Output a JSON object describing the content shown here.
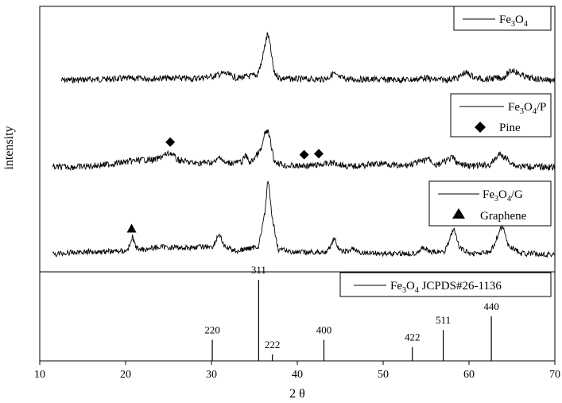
{
  "chart_data": {
    "type": "line",
    "xlabel": "2 θ",
    "ylabel": "intensity",
    "xlim": [
      10,
      70
    ],
    "xticks": [
      "10",
      "20",
      "30",
      "40",
      "50",
      "60",
      "70"
    ],
    "grid": false,
    "series": [
      {
        "name": "Fe3O4",
        "legend": {
          "main": "Fe",
          "sub": "3",
          "mid": "O",
          "sub2": "4",
          "tail": ""
        },
        "x": [
          12.5,
          20,
          25,
          28,
          30.2,
          31.5,
          33,
          35.3,
          35.8,
          36.3,
          36.55,
          36.8,
          37.3,
          38,
          40,
          43,
          43.8,
          44.2,
          44.7,
          46,
          50,
          53.5,
          54.8,
          55.8,
          57.5,
          58.8,
          59.5,
          60,
          60.8,
          62,
          64,
          64.6,
          65.2,
          65.8,
          67,
          70
        ],
        "y": [
          0.08,
          0.11,
          0.12,
          0.11,
          0.16,
          0.22,
          0.12,
          0.18,
          0.4,
          0.82,
          1.0,
          0.8,
          0.22,
          0.12,
          0.1,
          0.1,
          0.15,
          0.22,
          0.14,
          0.1,
          0.09,
          0.09,
          0.13,
          0.09,
          0.09,
          0.13,
          0.23,
          0.2,
          0.12,
          0.1,
          0.13,
          0.22,
          0.29,
          0.2,
          0.12,
          0.08
        ]
      },
      {
        "name": "Fe3O4/P",
        "legend": {
          "main": "Fe",
          "sub": "3",
          "mid": "O",
          "sub2": "4",
          "tail": "/P"
        },
        "x": [
          11.5,
          15,
          18,
          20,
          22,
          23.5,
          24.8,
          25.3,
          26,
          28,
          30.5,
          31,
          31.5,
          33.5,
          34,
          34.5,
          35.8,
          36.2,
          36.5,
          36.8,
          37.3,
          38.5,
          40,
          42,
          44.2,
          46,
          50.2,
          52,
          54.8,
          55.2,
          56.2,
          58.1,
          58.8,
          60.5,
          62.5,
          63.5,
          64.2,
          65.5,
          70
        ],
        "y": [
          0.05,
          0.06,
          0.1,
          0.14,
          0.18,
          0.18,
          0.28,
          0.3,
          0.18,
          0.12,
          0.14,
          0.25,
          0.12,
          0.14,
          0.26,
          0.12,
          0.36,
          0.62,
          0.7,
          0.55,
          0.16,
          0.08,
          0.07,
          0.08,
          0.13,
          0.06,
          0.12,
          0.06,
          0.16,
          0.22,
          0.08,
          0.22,
          0.1,
          0.07,
          0.09,
          0.28,
          0.22,
          0.07,
          0.05
        ]
      },
      {
        "name": "Fe3O4/G",
        "legend": {
          "main": "Fe",
          "sub": "3",
          "mid": "O",
          "sub2": "4",
          "tail": "/G"
        },
        "x": [
          11.5,
          15,
          20,
          20.5,
          20.8,
          21.2,
          22,
          24,
          27,
          30.2,
          30.9,
          31.5,
          33,
          35.5,
          36.2,
          36.6,
          37,
          37.8,
          40,
          43.5,
          44.3,
          44.9,
          46,
          46.5,
          47,
          50,
          53.5,
          54.8,
          55.5,
          57.2,
          58.2,
          58.9,
          60,
          62.5,
          63.4,
          63.9,
          64.5,
          66,
          70
        ],
        "y": [
          0.06,
          0.09,
          0.1,
          0.16,
          0.28,
          0.14,
          0.12,
          0.15,
          0.14,
          0.16,
          0.32,
          0.15,
          0.1,
          0.16,
          0.55,
          1.0,
          0.55,
          0.12,
          0.08,
          0.09,
          0.26,
          0.1,
          0.09,
          0.14,
          0.08,
          0.07,
          0.07,
          0.14,
          0.08,
          0.1,
          0.38,
          0.14,
          0.07,
          0.08,
          0.3,
          0.42,
          0.18,
          0.07,
          0.06
        ]
      }
    ],
    "reference": {
      "legend": {
        "main": "Fe",
        "sub": "3",
        "mid": "O",
        "sub2": "4",
        "tail": " JCPDS#26-1136"
      },
      "peaks": [
        {
          "x": 30.1,
          "label": "220",
          "h": 0.26
        },
        {
          "x": 35.5,
          "label": "311",
          "h": 1.0
        },
        {
          "x": 37.1,
          "label": "222",
          "h": 0.08
        },
        {
          "x": 43.1,
          "label": "400",
          "h": 0.26
        },
        {
          "x": 53.4,
          "label": "422",
          "h": 0.17
        },
        {
          "x": 57.0,
          "label": "511",
          "h": 0.38
        },
        {
          "x": 62.6,
          "label": "440",
          "h": 0.55
        }
      ]
    },
    "markers": [
      {
        "series": "Fe3O4/P",
        "shape": "diamond",
        "name": "Pine",
        "x": [
          25.2,
          40.8,
          42.5
        ]
      },
      {
        "series": "Fe3O4/G",
        "shape": "triangle",
        "name": "Graphene",
        "x": [
          20.7
        ]
      }
    ]
  }
}
